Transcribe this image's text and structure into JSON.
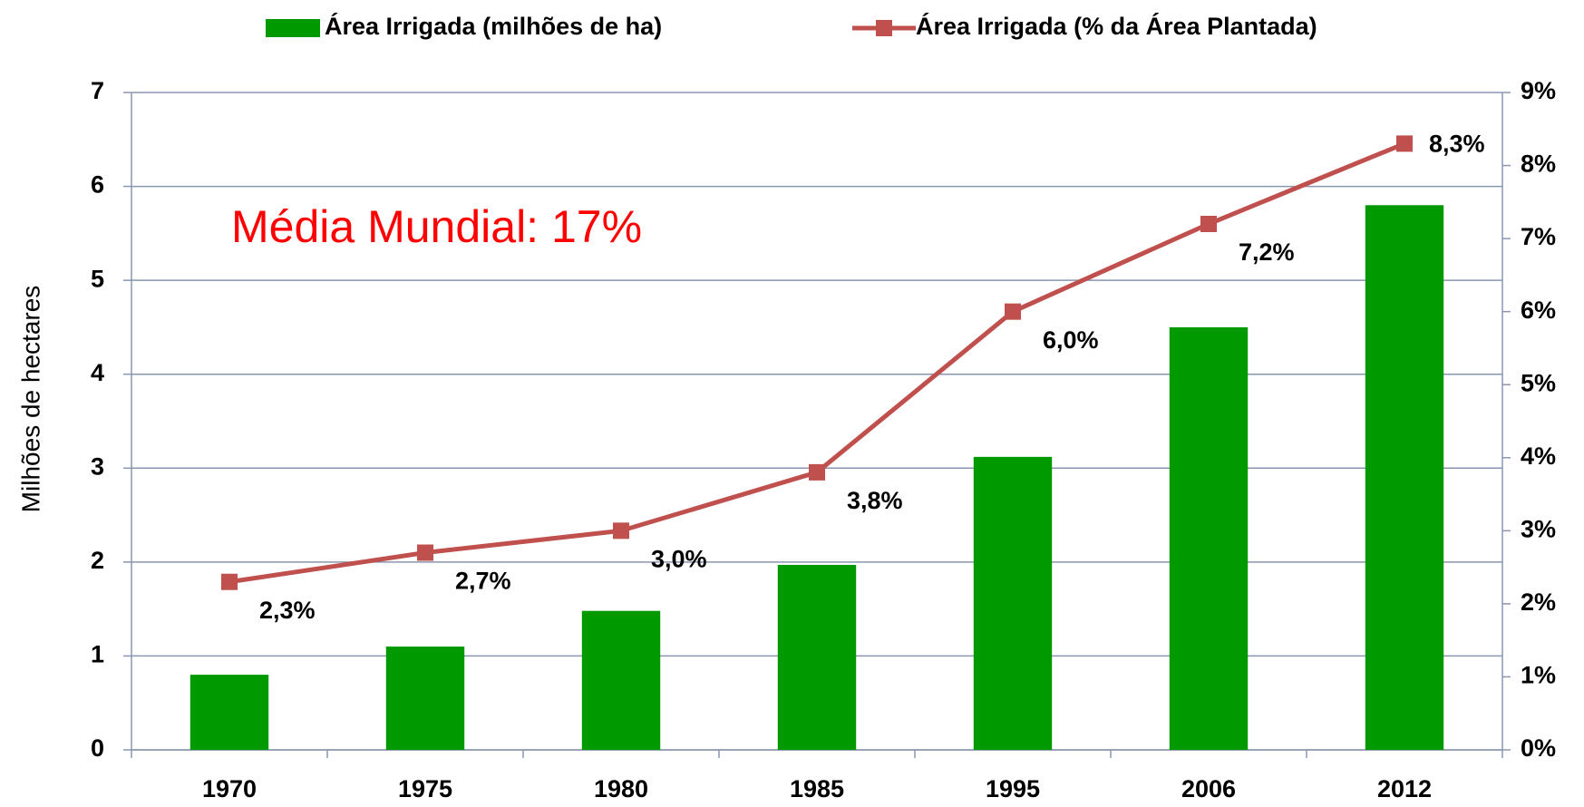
{
  "chart_data": {
    "type": "bar-line",
    "annotation": "Média Mundial: 17%",
    "y_label": "Milhões de hectares",
    "categories": [
      "1970",
      "1975",
      "1980",
      "1985",
      "1995",
      "2006",
      "2012"
    ],
    "series": [
      {
        "name": "Área Irrigada (milhões de ha)",
        "type": "bar",
        "color": "#009900",
        "values": [
          0.8,
          1.1,
          1.48,
          1.97,
          3.12,
          4.5,
          5.8
        ]
      },
      {
        "name": "Área Irrigada (% da Área Plantada)",
        "type": "line",
        "axis": "y2",
        "color": "#c0504d",
        "values": [
          2.3,
          2.7,
          3.0,
          3.8,
          6.0,
          7.2,
          8.3
        ],
        "value_labels": [
          "2,3%",
          "2,7%",
          "3,0%",
          "3,8%",
          "6,0%",
          "7,2%",
          "8,3%"
        ]
      }
    ],
    "ylim": [
      0,
      7
    ],
    "yticks": [
      0,
      1,
      2,
      3,
      4,
      5,
      6,
      7
    ],
    "y2lim": [
      0,
      9
    ],
    "y2ticks": [
      {
        "value": 0,
        "label": "0%"
      },
      {
        "value": 1,
        "label": "1%"
      },
      {
        "value": 2,
        "label": "2%"
      },
      {
        "value": 3,
        "label": "3%"
      },
      {
        "value": 4,
        "label": "4%"
      },
      {
        "value": 5,
        "label": "5%"
      },
      {
        "value": 6,
        "label": "6%"
      },
      {
        "value": 7,
        "label": "7%"
      },
      {
        "value": 8,
        "label": "8%"
      },
      {
        "value": 9,
        "label": "9%"
      }
    ],
    "grid": true,
    "legend": "top"
  }
}
